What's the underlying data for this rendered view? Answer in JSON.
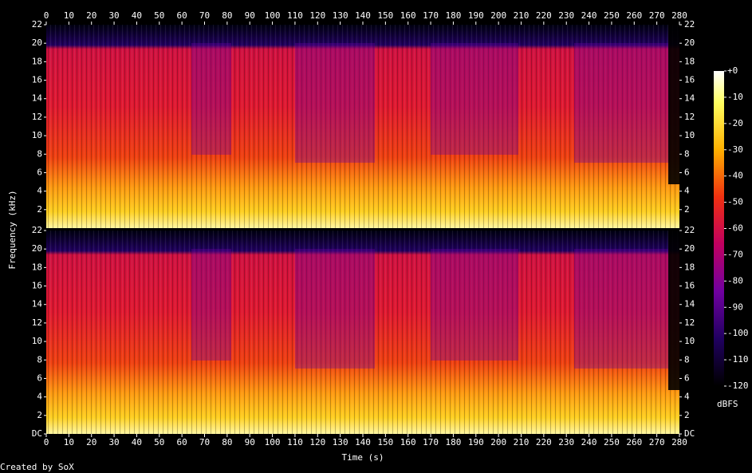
{
  "chart_data": {
    "type": "spectrogram",
    "xlabel": "Time (s)",
    "ylabel": "Frequency (kHz)",
    "xlim": [
      0,
      280
    ],
    "xticks": [
      0,
      10,
      20,
      30,
      40,
      50,
      60,
      70,
      80,
      90,
      100,
      110,
      120,
      130,
      140,
      150,
      160,
      170,
      180,
      190,
      200,
      210,
      220,
      230,
      240,
      250,
      260,
      270,
      280
    ],
    "ylim": [
      0,
      22
    ],
    "panels": [
      {
        "yticks": [
          2,
          4,
          6,
          8,
          10,
          12,
          14,
          16,
          18,
          20,
          22
        ]
      },
      {
        "yticks": [
          {
            "value": 0,
            "label": "DC"
          },
          2,
          4,
          6,
          8,
          10,
          12,
          14,
          16,
          18,
          20,
          22
        ]
      }
    ],
    "clim": [
      -120,
      0
    ],
    "cticks": [
      {
        "value": 0,
        "label": "+0"
      },
      -10,
      -20,
      -30,
      -40,
      -50,
      -60,
      -70,
      -80,
      -90,
      -100,
      -110,
      -120
    ],
    "clabel": "dBFS",
    "footer": "Created by SoX"
  }
}
